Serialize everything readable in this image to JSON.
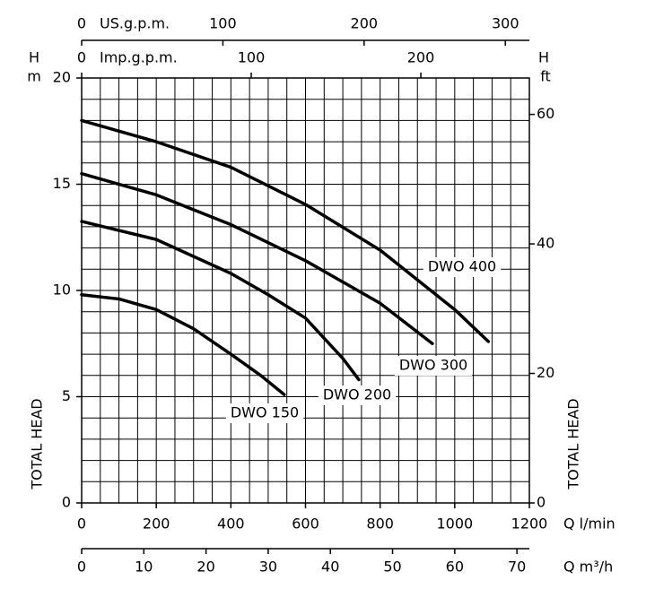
{
  "chart_data": {
    "type": "line",
    "y_symbol": "H",
    "y_unit": "m",
    "y2_symbol": "H",
    "y2_unit": "ft",
    "y_label": "TOTAL HEAD",
    "y2_label": "TOTAL HEAD",
    "x_label": "Q l/min",
    "x2_label": "Q m³/h",
    "x3_label": "US.g.p.m.",
    "x4_label": "Imp.g.p.m.",
    "xlim": [
      0,
      1200
    ],
    "xticks": [
      0,
      200,
      400,
      600,
      800,
      1000,
      1200
    ],
    "ylim": [
      0,
      20
    ],
    "yticks": [
      0,
      5,
      10,
      15,
      20
    ],
    "y2lim": [
      0,
      65.62
    ],
    "y2ticks": [
      0,
      20,
      40,
      60
    ],
    "x2lim": [
      0,
      72
    ],
    "x2ticks": [
      0,
      10,
      20,
      30,
      40,
      50,
      60,
      70
    ],
    "x3lim": [
      0,
      317
    ],
    "x3ticks": [
      0,
      100,
      200,
      300
    ],
    "x4lim": [
      0,
      264
    ],
    "x4ticks": [
      0,
      100,
      200
    ],
    "grid": true,
    "xgrid": [
      0,
      50,
      100,
      150,
      200,
      250,
      300,
      350,
      400,
      450,
      500,
      550,
      600,
      650,
      700,
      750,
      800,
      850,
      900,
      950,
      1000,
      1050,
      1100,
      1150,
      1200
    ],
    "ygrid": [
      0,
      1,
      2,
      3,
      4,
      5,
      6,
      7,
      8,
      9,
      10,
      11,
      12,
      13,
      14,
      15,
      16,
      17,
      18,
      19,
      20
    ],
    "series": [
      {
        "name": "DWO 150",
        "color": "#000000",
        "x": [
          0,
          100,
          200,
          300,
          400,
          480,
          543
        ],
        "values": [
          9.8,
          9.6,
          9.1,
          8.2,
          7.0,
          6.0,
          5.1
        ]
      },
      {
        "name": "DWO 200",
        "color": "#000000",
        "x": [
          0,
          200,
          400,
          500,
          600,
          700,
          743
        ],
        "values": [
          13.25,
          12.4,
          10.8,
          9.8,
          8.7,
          6.8,
          5.8
        ]
      },
      {
        "name": "DWO 300",
        "color": "#000000",
        "x": [
          0,
          200,
          400,
          600,
          800,
          940
        ],
        "values": [
          15.5,
          14.5,
          13.1,
          11.4,
          9.4,
          7.5
        ]
      },
      {
        "name": "DWO 400",
        "color": "#000000",
        "x": [
          0,
          200,
          400,
          600,
          800,
          1000,
          1090
        ],
        "values": [
          18.0,
          17.0,
          15.8,
          14.05,
          11.9,
          9.1,
          7.6
        ]
      }
    ]
  }
}
